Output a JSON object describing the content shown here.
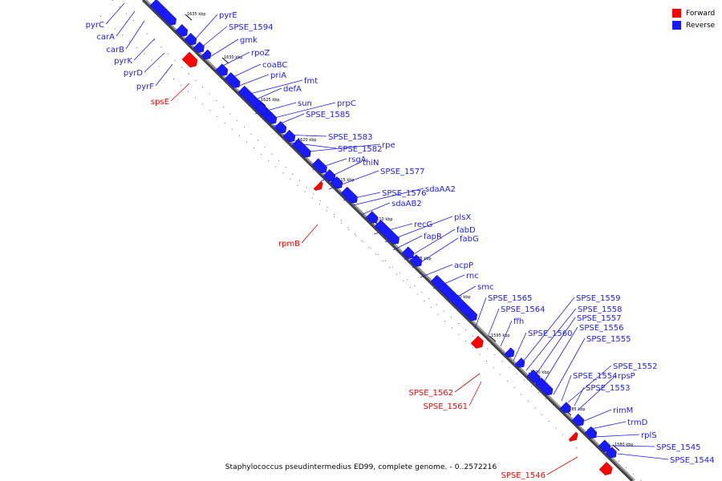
{
  "caption": "Staphylococcus pseudintermedius ED99, complete genome. - 0..2572216",
  "legend": [
    {
      "label": "Forward",
      "color": "#ff0000"
    },
    {
      "label": "Reverse",
      "color": "#1a1aff"
    }
  ],
  "ticks": [
    "1635 kbp",
    "1630 kbp",
    "1625 kbp",
    "1620 kbp",
    "1615 kbp",
    "1610 kbp",
    "1605 kbp",
    "1600 kbp",
    "1595 kbp",
    "1590 kbp",
    "1585 kbp",
    "1580 kbp"
  ],
  "forward_labels": [
    "spsE",
    "rpmB",
    "SPSE_1562",
    "SPSE_1561",
    "SPSE_1546"
  ],
  "reverse_labels_left": [
    "pyrC",
    "carA",
    "carB",
    "pyrK",
    "pyrD",
    "pyrF"
  ],
  "reverse_labels_right": [
    "pyrE",
    "SPSE_1594",
    "gmk",
    "rpoZ",
    "coaBC",
    "priA",
    "fmt",
    "defA",
    "sun",
    "prpC",
    "SPSE_1585",
    "SPSE_1583",
    "SPSE_1582",
    "rpe",
    "rsgA",
    "thiN",
    "SPSE_1577",
    "SPSE_1576",
    "sdaAA2",
    "sdaAB2",
    "recG",
    "plsX",
    "fapR",
    "fabD",
    "fabG",
    "acpP",
    "rnc",
    "smc",
    "SPSE_1565",
    "SPSE_1564",
    "ffh",
    "SPSE_1560",
    "SPSE_1559",
    "SPSE_1558",
    "SPSE_1557",
    "SPSE_1556",
    "SPSE_1555",
    "SPSE_1552",
    "SPSE_1554",
    "rpsP",
    "SPSE_1553",
    "rimM",
    "trmD",
    "rplS",
    "SPSE_1545",
    "SPSE_1544"
  ],
  "colors": {
    "forward": "#ff0000",
    "reverse": "#1a1aff",
    "line_forward": "#e00000",
    "line_reverse": "#1a1aff",
    "backbone": "#555555"
  }
}
